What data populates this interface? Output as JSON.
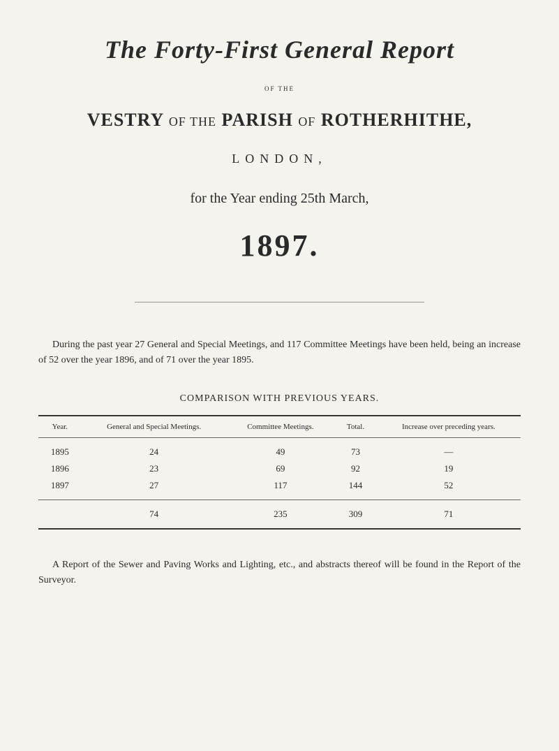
{
  "title": {
    "main": "The Forty-First General Report",
    "of_the": "OF THE",
    "vestry_prefix": "VESTRY",
    "of1": "OF THE",
    "parish": "PARISH",
    "of2": "OF",
    "rotherhithe": "ROTHERHITHE,",
    "london": "LONDON,",
    "for_year": "for the Year ending 25th March,",
    "year": "1897."
  },
  "body_paragraph": "During the past year 27 General and Special Meetings, and 117 Committee Meetings have been held, being an increase of 52 over the year 1896, and of 71 over the year 1895.",
  "table": {
    "title": "COMPARISON WITH PREVIOUS YEARS.",
    "headers": {
      "year": "Year.",
      "general": "General and Special Meetings.",
      "committee": "Committee Meetings.",
      "total": "Total.",
      "increase": "Increase over preceding years."
    },
    "rows": [
      {
        "year": "1895",
        "general": "24",
        "committee": "49",
        "total": "73",
        "increase": "—"
      },
      {
        "year": "1896",
        "general": "23",
        "committee": "69",
        "total": "92",
        "increase": "19"
      },
      {
        "year": "1897",
        "general": "27",
        "committee": "117",
        "total": "144",
        "increase": "52"
      }
    ],
    "totals": {
      "year": "",
      "general": "74",
      "committee": "235",
      "total": "309",
      "increase": "71"
    }
  },
  "footer_paragraph": "A Report of the Sewer and Paving Works and Lighting, etc., and abstracts thereof will be found in the Report of the Surveyor."
}
